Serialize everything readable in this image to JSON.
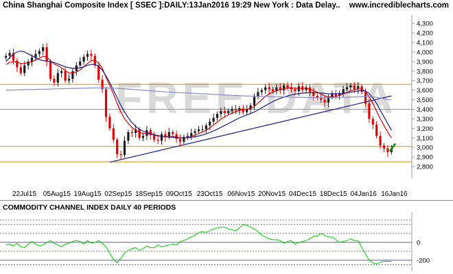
{
  "header": {
    "title": "China Shanghai Composite Index [ SSEC ]:DAILY:13Jan2016 19:29 New York : Data Delay..",
    "site": "www.incrediblecharts.com"
  },
  "watermark": "FREE DATA",
  "colors": {
    "up_candle": "#1a1a1a",
    "down_candle": "#e00000",
    "ma_short": "#e00000",
    "ma_medium": "#1a1a8a",
    "ma_long": "#8888cc",
    "horizontal_lines": "#e08a00",
    "trendline": "#1a1a8a",
    "cci_line": "#00cc00",
    "latest_mark": "#008800"
  },
  "chart_data": [
    {
      "type": "candlestick",
      "title": "China Shanghai Composite Index [ SSEC ]:DAILY:13Jan2016 19:29 New York : Data Delay..",
      "x_tick_labels": [
        "22Jul15",
        "05Aug15",
        "19Aug15",
        "02Sep15",
        "18Sep15",
        "09Oct15",
        "23Oct15",
        "06Nov15",
        "20Nov15",
        "04Dec15",
        "18Dec15",
        "04Jan16",
        "16Jan16"
      ],
      "y_tick_labels": [
        "2,800",
        "2,900",
        "3,000",
        "3,100",
        "3,200",
        "3,300",
        "3,400",
        "3,500",
        "3,600",
        "3,700",
        "3,800",
        "3,900",
        "4,000",
        "4,100",
        "4,200",
        "4,300"
      ],
      "ylim": [
        2750,
        4330
      ],
      "grid": false,
      "horizontal_levels": [
        3660,
        3400,
        3010,
        2850
      ],
      "trendlines": [
        {
          "from": [
            28,
            2845
          ],
          "to": [
            190,
            3540
          ]
        }
      ],
      "series": [
        {
          "name": "",
          "role": "close",
          "values": [
            3960,
            3990,
            3910,
            3840,
            3780,
            3860,
            3900,
            3940,
            3980,
            4010,
            4050,
            3900,
            3720,
            3680,
            3780,
            3800,
            3700,
            3720,
            3800,
            3860,
            3900,
            3950,
            3980,
            3960,
            3860,
            3710,
            3610,
            3320,
            3200,
            3080,
            2930,
            2920,
            3070,
            3160,
            3150,
            3190,
            3100,
            3120,
            3180,
            3130,
            3080,
            3070,
            3140,
            3110,
            3160,
            3140,
            3090,
            3060,
            3110,
            3120,
            3150,
            3170,
            3190,
            3190,
            3230,
            3270,
            3310,
            3350,
            3380,
            3360,
            3380,
            3400,
            3390,
            3410,
            3370,
            3400,
            3440,
            3530,
            3580,
            3600,
            3630,
            3610,
            3590,
            3630,
            3600,
            3650,
            3630,
            3610,
            3590,
            3640,
            3600,
            3630,
            3580,
            3540,
            3520,
            3500,
            3470,
            3530,
            3560,
            3540,
            3570,
            3610,
            3630,
            3650,
            3610,
            3640,
            3580,
            3460,
            3300,
            3240,
            3120,
            3020,
            2990,
            2950,
            2980
          ]
        },
        {
          "name": "",
          "role": "ma_short",
          "values": [
            3870,
            3890,
            3900,
            3895,
            3880,
            3880,
            3890,
            3900,
            3915,
            3935,
            3955,
            3950,
            3910,
            3875,
            3855,
            3835,
            3805,
            3780,
            3780,
            3790,
            3815,
            3845,
            3880,
            3910,
            3915,
            3885,
            3830,
            3735,
            3650,
            3560,
            3460,
            3370,
            3300,
            3250,
            3210,
            3180,
            3160,
            3145,
            3145,
            3140,
            3130,
            3120,
            3115,
            3110,
            3115,
            3115,
            3110,
            3100,
            3100,
            3105,
            3115,
            3130,
            3145,
            3160,
            3180,
            3205,
            3235,
            3265,
            3295,
            3320,
            3340,
            3360,
            3375,
            3390,
            3395,
            3400,
            3410,
            3430,
            3465,
            3500,
            3535,
            3560,
            3580,
            3595,
            3605,
            3615,
            3625,
            3625,
            3620,
            3620,
            3620,
            3620,
            3610,
            3595,
            3580,
            3560,
            3540,
            3530,
            3530,
            3535,
            3545,
            3560,
            3575,
            3595,
            3605,
            3615,
            3610,
            3585,
            3530,
            3460,
            3380,
            3300,
            3230,
            3160,
            3100
          ]
        },
        {
          "name": "",
          "role": "ma_medium",
          "values": [
            3900,
            3940,
            3980,
            4000,
            4010,
            4000,
            3980,
            3960,
            3940,
            3920,
            3910,
            3905,
            3900,
            3890,
            3875,
            3860,
            3845,
            3835,
            3830,
            3830,
            3835,
            3845,
            3860,
            3870,
            3870,
            3850,
            3810,
            3750,
            3680,
            3600,
            3520,
            3440,
            3370,
            3310,
            3260,
            3220,
            3190,
            3170,
            3155,
            3145,
            3135,
            3125,
            3118,
            3112,
            3108,
            3105,
            3102,
            3100,
            3100,
            3102,
            3106,
            3112,
            3120,
            3130,
            3142,
            3156,
            3172,
            3190,
            3210,
            3230,
            3250,
            3270,
            3290,
            3310,
            3325,
            3340,
            3355,
            3372,
            3392,
            3414,
            3437,
            3460,
            3480,
            3498,
            3514,
            3528,
            3540,
            3550,
            3558,
            3564,
            3568,
            3572,
            3574,
            3574,
            3572,
            3570,
            3566,
            3563,
            3562,
            3562,
            3564,
            3568,
            3573,
            3580,
            3586,
            3592,
            3596,
            3590,
            3565,
            3520,
            3460,
            3390,
            3320,
            3250,
            3180
          ]
        },
        {
          "name": "",
          "role": "ma_long",
          "values": [
            3600,
            3601,
            3602,
            3603,
            3604,
            3605,
            3606,
            3607,
            3608,
            3609,
            3610,
            3611,
            3612,
            3613,
            3614,
            3615,
            3616,
            3617,
            3618,
            3619,
            3620,
            3621,
            3622,
            3623,
            3624,
            3624,
            3624,
            3623,
            3622,
            3621,
            3619,
            3617,
            3615,
            3612,
            3609,
            3606,
            3603,
            3600,
            3597,
            3594,
            3591,
            3588,
            3585,
            3582,
            3580,
            3578,
            3576,
            3574,
            3572,
            3570,
            3568,
            3566,
            3564,
            3562,
            3560,
            3558,
            3556,
            3554,
            3552,
            3550,
            3548,
            3546,
            3544,
            3542,
            3540,
            3539,
            3538,
            3537,
            3536,
            3535,
            3534,
            3533,
            3532,
            3531,
            3530,
            3529,
            3528,
            3527,
            3526,
            3525,
            3524,
            3523,
            3522,
            3521,
            3520,
            3520,
            3520,
            3520,
            3521,
            3522,
            3523,
            3524,
            3525,
            3527,
            3529,
            3531,
            3533,
            3534,
            3533,
            3530,
            3525,
            3518,
            3510,
            3503,
            3496
          ]
        }
      ]
    },
    {
      "type": "line",
      "title": "COMMODITY CHANNEL INDEX DAILY 40 PERIODS",
      "y_tick_labels": [
        "0",
        "-200"
      ],
      "ylim": [
        -300,
        320
      ],
      "reference_levels": [
        250,
        200,
        100,
        0,
        -100,
        -200,
        -250
      ],
      "grid": false,
      "series": [
        {
          "name": "",
          "values": [
            -30,
            -20,
            -40,
            -10,
            -50,
            -60,
            -20,
            10,
            -20,
            -40,
            -30,
            0,
            20,
            -10,
            -30,
            -50,
            -20,
            -10,
            10,
            20,
            10,
            -20,
            20,
            -10,
            0,
            20,
            -10,
            -50,
            -120,
            -190,
            -230,
            -180,
            -120,
            -90,
            -70,
            -60,
            -90,
            -70,
            -40,
            -60,
            -60,
            -30,
            -50,
            -40,
            -30,
            -20,
            -30,
            10,
            20,
            40,
            60,
            80,
            110,
            120,
            110,
            130,
            150,
            160,
            170,
            170,
            150,
            140,
            130,
            160,
            200,
            190,
            170,
            150,
            120,
            80,
            60,
            40,
            30,
            30,
            20,
            -10,
            10,
            20,
            -20,
            0,
            10,
            20,
            40,
            70,
            70,
            100,
            80,
            60,
            60,
            30,
            0,
            10,
            20,
            40,
            20,
            20,
            -60,
            -130,
            -200,
            -230,
            -240,
            -225,
            -210,
            -215,
            -210
          ]
        }
      ]
    }
  ]
}
